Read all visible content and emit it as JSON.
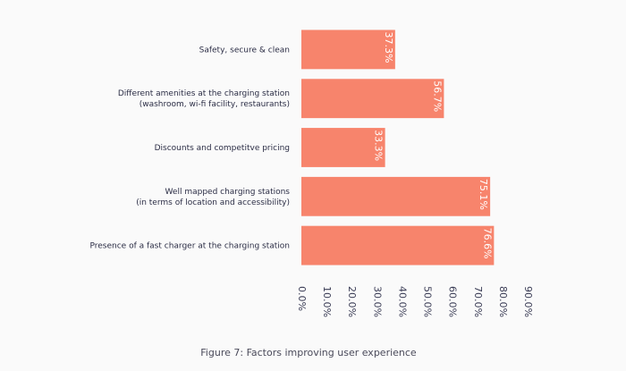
{
  "chart_data": {
    "type": "bar",
    "orientation": "horizontal",
    "title": "Figure 7: Factors improving user experience",
    "categories": [
      [
        "Safety, secure & clean"
      ],
      [
        "Different amenities at the charging station",
        "(washroom, wi-fi facility, restaurants)"
      ],
      [
        "Discounts and competitve pricing"
      ],
      [
        "Well mapped charging stations",
        "(in terms of location and accessibility)"
      ],
      [
        "Presence of a fast charger at the charging station"
      ]
    ],
    "values": [
      37.3,
      56.7,
      33.3,
      75.1,
      76.6
    ],
    "value_labels": [
      "37.3%",
      "56.7%",
      "33.3%",
      "75.1%",
      "76.6%"
    ],
    "color": "#f7846c",
    "xlim": [
      0,
      90
    ],
    "xticks": [
      {
        "value": 0,
        "label": "0.0%"
      },
      {
        "value": 10,
        "label": "10.0%"
      },
      {
        "value": 20,
        "label": "20.0%"
      },
      {
        "value": 30,
        "label": "30.0%"
      },
      {
        "value": 40,
        "label": "40.0%"
      },
      {
        "value": 50,
        "label": "50.0%"
      },
      {
        "value": 60,
        "label": "60.0%"
      },
      {
        "value": 70,
        "label": "70.0%"
      },
      {
        "value": 80,
        "label": "80.0%"
      },
      {
        "value": 90,
        "label": "90.0%"
      }
    ],
    "grid": false
  }
}
